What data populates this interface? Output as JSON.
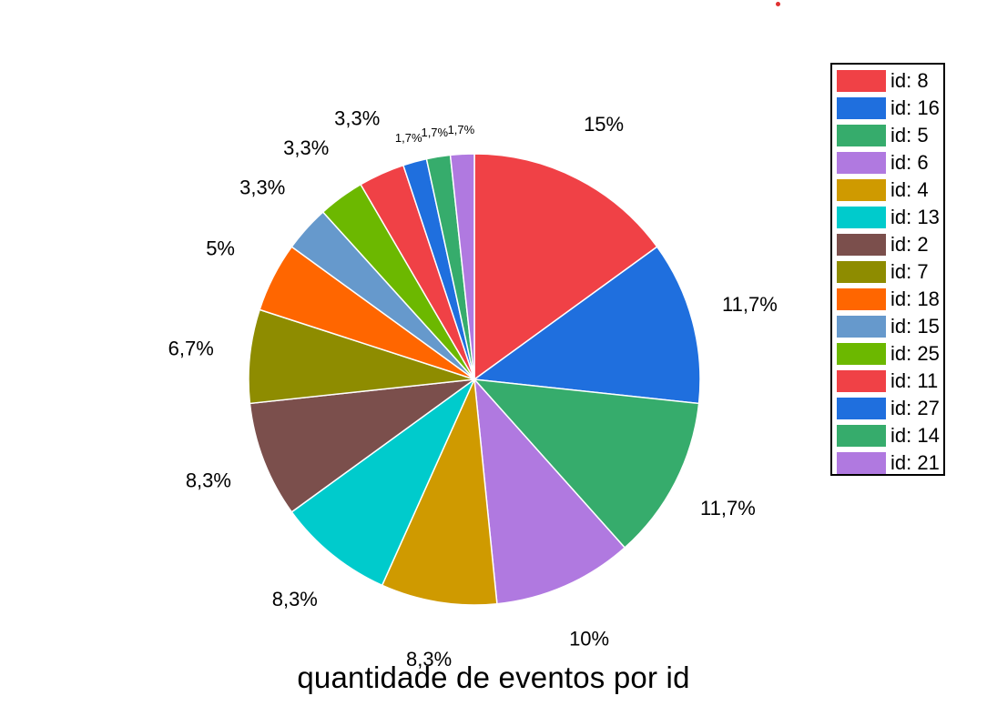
{
  "chart_data": {
    "type": "pie",
    "title": "quantidade de eventos por id",
    "slices": [
      {
        "label": "id: 8",
        "value": 15,
        "text": "15%",
        "color": "#f04146"
      },
      {
        "label": "id: 16",
        "value": 11.7,
        "text": "11,7%",
        "color": "#1f6fde"
      },
      {
        "label": "id: 5",
        "value": 11.7,
        "text": "11,7%",
        "color": "#36ac6c"
      },
      {
        "label": "id: 6",
        "value": 10,
        "text": "10%",
        "color": "#b079e0"
      },
      {
        "label": "id: 4",
        "value": 8.3,
        "text": "8,3%",
        "color": "#cf9a00"
      },
      {
        "label": "id: 13",
        "value": 8.3,
        "text": "8,3%",
        "color": "#00cbcc"
      },
      {
        "label": "id: 2",
        "value": 8.3,
        "text": "8,3%",
        "color": "#7b4f4c"
      },
      {
        "label": "id: 7",
        "value": 6.7,
        "text": "6,7%",
        "color": "#8e8c00"
      },
      {
        "label": "id: 18",
        "value": 5,
        "text": "5%",
        "color": "#ff6600"
      },
      {
        "label": "id: 15",
        "value": 3.3,
        "text": "3,3%",
        "color": "#6699cc"
      },
      {
        "label": "id: 25",
        "value": 3.3,
        "text": "3,3%",
        "color": "#6cb800"
      },
      {
        "label": "id: 11",
        "value": 3.3,
        "text": "3,3%",
        "color": "#f04146"
      },
      {
        "label": "id: 27",
        "value": 1.7,
        "text": "1,7%",
        "color": "#1f6fde"
      },
      {
        "label": "id: 14",
        "value": 1.7,
        "text": "1,7%",
        "color": "#36ac6c"
      },
      {
        "label": "id: 21",
        "value": 1.7,
        "text": "1,7%",
        "color": "#b079e0"
      }
    ],
    "start": "top",
    "direction": "clockwise",
    "legend_position": "top-right"
  },
  "colors": {
    "background": "#ffffff",
    "slice_border": "#ffffff",
    "stray_dot": "#e03030"
  }
}
